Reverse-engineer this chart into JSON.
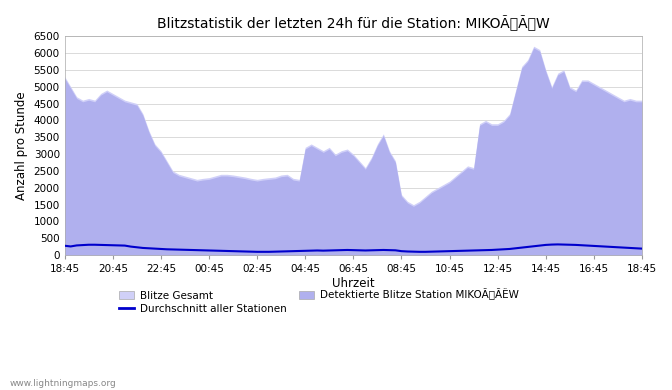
{
  "title": "Blitzstatistik der letzten 24h für die Station: MIKOÃÃW",
  "xlabel": "Uhrzeit",
  "ylabel": "Anzahl pro Stunde",
  "ylim": [
    0,
    6500
  ],
  "yticks": [
    0,
    500,
    1000,
    1500,
    2000,
    2500,
    3000,
    3500,
    4000,
    4500,
    5000,
    5500,
    6000,
    6500
  ],
  "xtick_labels": [
    "18:45",
    "20:45",
    "22:45",
    "00:45",
    "02:45",
    "04:45",
    "06:45",
    "08:45",
    "10:45",
    "12:45",
    "14:45",
    "16:45",
    "18:45"
  ],
  "legend_labels": [
    "Blitze Gesamt",
    "Durchschnitt aller Stationen",
    "Detektierte Blitze Station MIKOÃÃȄW"
  ],
  "watermark": "www.lightningmaps.org",
  "bg_color": "#ffffff",
  "fill_color_1": "#d0d0f8",
  "fill_color_2": "#b0b0ee",
  "line_color": "#0000cc",
  "x_values": [
    0,
    1,
    2,
    3,
    4,
    5,
    6,
    7,
    8,
    9,
    10,
    11,
    12,
    13,
    14,
    15,
    16,
    17,
    18,
    19,
    20,
    21,
    22,
    23,
    24,
    25,
    26,
    27,
    28,
    29,
    30,
    31,
    32,
    33,
    34,
    35,
    36,
    37,
    38,
    39,
    40,
    41,
    42,
    43,
    44,
    45,
    46,
    47,
    48,
    49,
    50,
    51,
    52,
    53,
    54,
    55,
    56,
    57,
    58,
    59,
    60,
    61,
    62,
    63,
    64,
    65,
    66,
    67,
    68,
    69,
    70,
    71,
    72,
    73,
    74,
    75,
    76,
    77,
    78,
    79,
    80,
    81,
    82,
    83,
    84,
    85,
    86,
    87,
    88,
    89,
    90,
    91,
    92,
    93,
    94,
    95,
    96
  ],
  "blitze_gesamt": [
    5300,
    5000,
    4700,
    4600,
    4650,
    4600,
    4800,
    4900,
    4800,
    4700,
    4600,
    4550,
    4500,
    4200,
    3700,
    3300,
    3100,
    2800,
    2500,
    2400,
    2350,
    2300,
    2250,
    2280,
    2300,
    2350,
    2400,
    2400,
    2380,
    2350,
    2320,
    2280,
    2250,
    2280,
    2300,
    2320,
    2380,
    2400,
    2280,
    2250,
    3200,
    3300,
    3200,
    3100,
    3200,
    3000,
    3100,
    3150,
    3000,
    2800,
    2600,
    2900,
    3300,
    3600,
    3100,
    2800,
    1800,
    1600,
    1500,
    1600,
    1750,
    1900,
    2000,
    2100,
    2200,
    2350,
    2500,
    2650,
    2600,
    3900,
    4000,
    3900,
    3900,
    4000,
    4200,
    4900,
    5600,
    5800,
    6200,
    6100,
    5500,
    5000,
    5400,
    5500,
    5000,
    4900,
    5200,
    5200,
    5100,
    5000,
    4900,
    4800,
    4700,
    4600,
    4650,
    4600,
    4600
  ],
  "avg_line": [
    280,
    260,
    290,
    300,
    310,
    310,
    305,
    300,
    295,
    290,
    285,
    255,
    235,
    215,
    205,
    195,
    185,
    175,
    170,
    165,
    160,
    155,
    150,
    145,
    140,
    135,
    130,
    125,
    120,
    115,
    110,
    105,
    100,
    100,
    100,
    105,
    110,
    115,
    120,
    125,
    130,
    135,
    140,
    135,
    140,
    145,
    150,
    155,
    150,
    145,
    140,
    145,
    150,
    155,
    150,
    145,
    120,
    110,
    105,
    100,
    100,
    105,
    110,
    115,
    120,
    125,
    130,
    135,
    140,
    145,
    150,
    155,
    165,
    175,
    185,
    205,
    225,
    245,
    265,
    285,
    305,
    315,
    320,
    315,
    310,
    305,
    295,
    285,
    275,
    265,
    255,
    245,
    235,
    225,
    215,
    205,
    195
  ],
  "station_blitze": [
    5250,
    4950,
    4650,
    4550,
    4600,
    4550,
    4750,
    4850,
    4750,
    4650,
    4550,
    4500,
    4450,
    4150,
    3650,
    3250,
    3050,
    2750,
    2450,
    2350,
    2300,
    2250,
    2200,
    2230,
    2250,
    2300,
    2350,
    2350,
    2330,
    2300,
    2270,
    2230,
    2200,
    2230,
    2250,
    2270,
    2330,
    2350,
    2230,
    2200,
    3150,
    3250,
    3150,
    3050,
    3150,
    2950,
    3050,
    3100,
    2950,
    2750,
    2550,
    2850,
    3250,
    3550,
    3050,
    2750,
    1750,
    1550,
    1450,
    1550,
    1700,
    1850,
    1950,
    2050,
    2150,
    2300,
    2450,
    2600,
    2550,
    3850,
    3950,
    3850,
    3850,
    3950,
    4150,
    4850,
    5550,
    5750,
    6150,
    6050,
    5450,
    4950,
    5350,
    5450,
    4950,
    4850,
    5150,
    5150,
    5050,
    4950,
    4850,
    4750,
    4650,
    4550,
    4600,
    4550,
    4550
  ]
}
